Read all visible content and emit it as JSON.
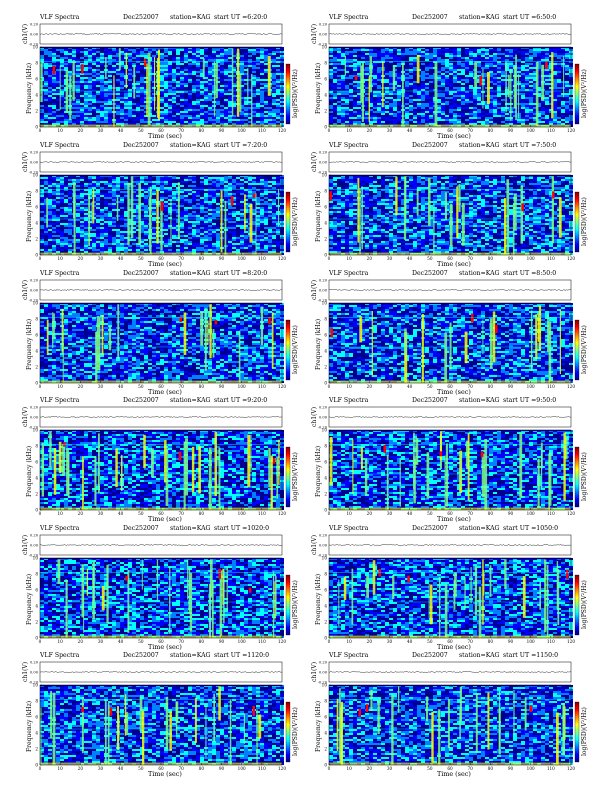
{
  "page": {
    "title": "VLF Spectra",
    "date": "Dec252007"
  },
  "colors": {
    "colormap": [
      "#00008f",
      "#0000ff",
      "#0080ff",
      "#00ffff",
      "#80ff80",
      "#ffff00",
      "#ff8000",
      "#ff0000",
      "#800000"
    ]
  },
  "labels": {
    "ch_axis": "ch1(V)",
    "freq_axis": "Frequency (kHz)",
    "time_axis": "Time (sec)",
    "cb_axis": "log(PSD)(V²/Hz)",
    "ch_ticks": [
      "0.20",
      "0.00",
      "-0.20"
    ]
  },
  "chart_data": [
    {
      "type": "heatmap",
      "station": "station=KAG",
      "start": "start UT =6:20:0",
      "x": [
        0,
        10,
        20,
        30,
        40,
        50,
        60,
        70,
        80,
        90,
        100,
        110,
        120
      ],
      "y": [
        0,
        2,
        4,
        6,
        8,
        10
      ],
      "xlabel": "Time (sec)",
      "ylabel": "Frequency (kHz)",
      "xlim": [
        0,
        120
      ],
      "ylim": [
        0,
        10
      ],
      "top_ylabel": "ch1(V)",
      "top_ylim": [
        -0.2,
        0.2
      ]
    },
    {
      "type": "heatmap",
      "station": "station=KAG",
      "start": "start UT =6:50:0",
      "x": [
        0,
        10,
        20,
        30,
        40,
        50,
        60,
        70,
        80,
        90,
        100,
        110,
        120
      ],
      "y": [
        0,
        2,
        4,
        6,
        8,
        10
      ],
      "xlabel": "Time (sec)",
      "ylabel": "Frequency (kHz)",
      "xlim": [
        0,
        120
      ],
      "ylim": [
        0,
        10
      ],
      "top_ylabel": "ch1(V)",
      "top_ylim": [
        -0.2,
        0.2
      ]
    },
    {
      "type": "heatmap",
      "station": "station=KAG",
      "start": "start UT =7:20:0",
      "x": [
        0,
        10,
        20,
        30,
        40,
        50,
        60,
        70,
        80,
        90,
        100,
        110,
        120
      ],
      "y": [
        0,
        2,
        4,
        6,
        8,
        10
      ],
      "xlabel": "Time (sec)",
      "ylabel": "Frequency (kHz)",
      "xlim": [
        0,
        120
      ],
      "ylim": [
        0,
        10
      ],
      "top_ylabel": "ch1(V)",
      "top_ylim": [
        -0.2,
        0.2
      ]
    },
    {
      "type": "heatmap",
      "station": "station=KAG",
      "start": "start UT =7:50:0",
      "x": [
        0,
        10,
        20,
        30,
        40,
        50,
        60,
        70,
        80,
        90,
        100,
        110,
        120
      ],
      "y": [
        0,
        2,
        4,
        6,
        8,
        10
      ],
      "xlabel": "Time (sec)",
      "ylabel": "Frequency (kHz)",
      "xlim": [
        0,
        120
      ],
      "ylim": [
        0,
        10
      ],
      "top_ylabel": "ch1(V)",
      "top_ylim": [
        -0.2,
        0.2
      ]
    },
    {
      "type": "heatmap",
      "station": "station=KAG",
      "start": "start UT =8:20:0",
      "x": [
        0,
        10,
        20,
        30,
        40,
        50,
        60,
        70,
        80,
        90,
        100,
        110,
        120
      ],
      "y": [
        0,
        2,
        4,
        6,
        8,
        10
      ],
      "xlabel": "Time (sec)",
      "ylabel": "Frequency (kHz)",
      "xlim": [
        0,
        120
      ],
      "ylim": [
        0,
        10
      ],
      "top_ylabel": "ch1(V)",
      "top_ylim": [
        -0.2,
        0.2
      ]
    },
    {
      "type": "heatmap",
      "station": "station=KAG",
      "start": "start UT =8:50:0",
      "x": [
        0,
        10,
        20,
        30,
        40,
        50,
        60,
        70,
        80,
        90,
        100,
        110,
        120
      ],
      "y": [
        0,
        2,
        4,
        6,
        8,
        10
      ],
      "xlabel": "Time (sec)",
      "ylabel": "Frequency (kHz)",
      "xlim": [
        0,
        120
      ],
      "ylim": [
        0,
        10
      ],
      "top_ylabel": "ch1(V)",
      "top_ylim": [
        -0.2,
        0.2
      ]
    },
    {
      "type": "heatmap",
      "station": "station=KAG",
      "start": "start UT =9:20:0",
      "x": [
        0,
        10,
        20,
        30,
        40,
        50,
        60,
        70,
        80,
        90,
        100,
        110,
        120
      ],
      "y": [
        0,
        2,
        4,
        6,
        8,
        10
      ],
      "xlabel": "Time (sec)",
      "ylabel": "Frequency (kHz)",
      "xlim": [
        0,
        120
      ],
      "ylim": [
        0,
        10
      ],
      "top_ylabel": "ch1(V)",
      "top_ylim": [
        -0.2,
        0.2
      ]
    },
    {
      "type": "heatmap",
      "station": "station=KAG",
      "start": "start UT =9:50:0",
      "x": [
        0,
        10,
        20,
        30,
        40,
        50,
        60,
        70,
        80,
        90,
        100,
        110,
        120
      ],
      "y": [
        0,
        2,
        4,
        6,
        8,
        10
      ],
      "xlabel": "Time (sec)",
      "ylabel": "Frequency (kHz)",
      "xlim": [
        0,
        120
      ],
      "ylim": [
        0,
        10
      ],
      "top_ylabel": "ch1(V)",
      "top_ylim": [
        -0.2,
        0.2
      ]
    },
    {
      "type": "heatmap",
      "station": "station=KAG",
      "start": "start UT =1020:0",
      "x": [
        0,
        10,
        20,
        30,
        40,
        50,
        60,
        70,
        80,
        90,
        100,
        110,
        120
      ],
      "y": [
        0,
        2,
        4,
        6,
        8,
        10
      ],
      "xlabel": "Time (sec)",
      "ylabel": "Frequency (kHz)",
      "xlim": [
        0,
        120
      ],
      "ylim": [
        0,
        10
      ],
      "top_ylabel": "ch1(V)",
      "top_ylim": [
        -0.2,
        0.2
      ]
    },
    {
      "type": "heatmap",
      "station": "station=KAG",
      "start": "start UT =1050:0",
      "x": [
        0,
        10,
        20,
        30,
        40,
        50,
        60,
        70,
        80,
        90,
        100,
        110,
        120
      ],
      "y": [
        0,
        2,
        4,
        6,
        8,
        10
      ],
      "xlabel": "Time (sec)",
      "ylabel": "Frequency (kHz)",
      "xlim": [
        0,
        120
      ],
      "ylim": [
        0,
        10
      ],
      "top_ylabel": "ch1(V)",
      "top_ylim": [
        -0.2,
        0.2
      ]
    },
    {
      "type": "heatmap",
      "station": "station=KAG",
      "start": "start UT =1120:0",
      "x": [
        0,
        10,
        20,
        30,
        40,
        50,
        60,
        70,
        80,
        90,
        100,
        110,
        120
      ],
      "y": [
        0,
        2,
        4,
        6,
        8,
        10
      ],
      "xlabel": "Time (sec)",
      "ylabel": "Frequency (kHz)",
      "xlim": [
        0,
        120
      ],
      "ylim": [
        0,
        10
      ],
      "top_ylabel": "ch1(V)",
      "top_ylim": [
        -0.2,
        0.2
      ]
    },
    {
      "type": "heatmap",
      "station": "station=KAG",
      "start": "start UT =1150:0",
      "x": [
        0,
        10,
        20,
        30,
        40,
        50,
        60,
        70,
        80,
        90,
        100,
        110,
        120
      ],
      "y": [
        0,
        2,
        4,
        6,
        8,
        10
      ],
      "xlabel": "Time (sec)",
      "ylabel": "Frequency (kHz)",
      "xlim": [
        0,
        120
      ],
      "ylim": [
        0,
        10
      ],
      "top_ylabel": "ch1(V)",
      "top_ylim": [
        -0.2,
        0.2
      ]
    }
  ]
}
